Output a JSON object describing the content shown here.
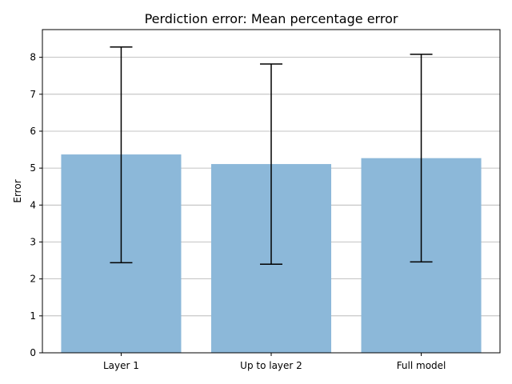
{
  "chart_data": {
    "type": "bar",
    "title": "Perdiction error: Mean percentage error",
    "xlabel": "",
    "ylabel": "Error",
    "categories": [
      "Layer 1",
      "Up to layer 2",
      "Full model"
    ],
    "values": [
      5.37,
      5.11,
      5.27
    ],
    "error_low": [
      2.44,
      2.4,
      2.46
    ],
    "error_high": [
      8.28,
      7.82,
      8.08
    ],
    "ylim": [
      0,
      8.75
    ],
    "yticks": [
      0,
      1,
      2,
      3,
      4,
      5,
      6,
      7,
      8
    ],
    "grid": "y",
    "colors": {
      "bar": "#8cb8d9",
      "error": "#000000",
      "grid": "#b0b0b0"
    }
  }
}
